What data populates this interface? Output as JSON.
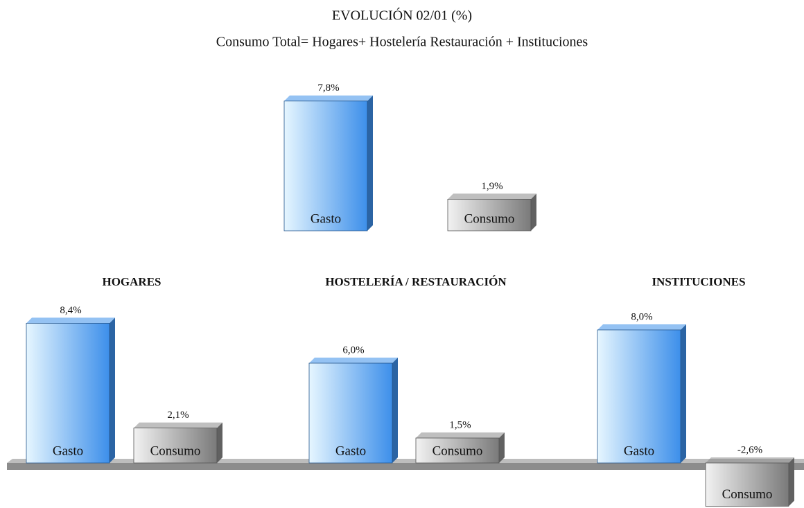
{
  "chart_data": [
    {
      "type": "bar",
      "title": "EVOLUCIÓN 02/01 (%)",
      "subtitle": "Consumo Total= Hogares+ Hostelería Restauración + Instituciones",
      "categories": [
        "Gasto",
        "Consumo"
      ],
      "values": [
        7.8,
        1.9
      ],
      "value_labels": [
        "7,8%",
        "1,9%"
      ],
      "colors": [
        "#3d8fea",
        "#8a8a8a"
      ]
    },
    {
      "type": "bar",
      "title": "HOGARES",
      "categories": [
        "Gasto",
        "Consumo"
      ],
      "values": [
        8.4,
        2.1
      ],
      "value_labels": [
        "8,4%",
        "2,1%"
      ],
      "colors": [
        "#3d8fea",
        "#8a8a8a"
      ]
    },
    {
      "type": "bar",
      "title": "HOSTELERÍA / RESTAURACIÓN",
      "categories": [
        "Gasto",
        "Consumo"
      ],
      "values": [
        6.0,
        1.5
      ],
      "value_labels": [
        "6,0%",
        "1,5%"
      ],
      "colors": [
        "#3d8fea",
        "#8a8a8a"
      ]
    },
    {
      "type": "bar",
      "title": "INSTITUCIONES",
      "categories": [
        "Gasto",
        "Consumo"
      ],
      "values": [
        8.0,
        -2.6
      ],
      "value_labels": [
        "8,0%",
        "-2,6%"
      ],
      "colors": [
        "#3d8fea",
        "#8a8a8a"
      ]
    }
  ]
}
